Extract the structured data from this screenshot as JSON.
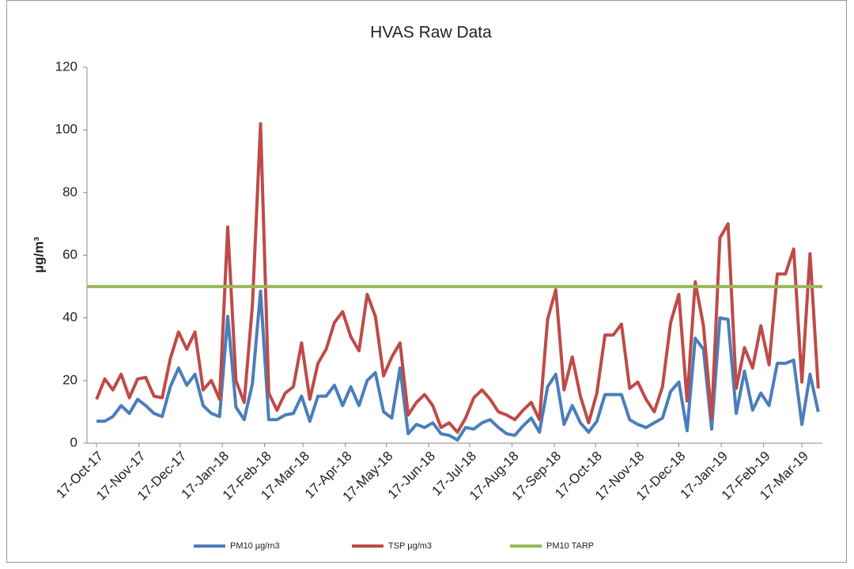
{
  "chart_data": {
    "type": "line",
    "title": "HVAS Raw Data",
    "y_label": "µg/m³",
    "x": [
      "2017-10-17",
      "2017-10-23",
      "2017-10-29",
      "2017-11-04",
      "2017-11-10",
      "2017-11-16",
      "2017-11-22",
      "2017-11-28",
      "2017-12-04",
      "2017-12-10",
      "2017-12-16",
      "2017-12-22",
      "2017-12-28",
      "2018-01-03",
      "2018-01-09",
      "2018-01-15",
      "2018-01-21",
      "2018-01-27",
      "2018-02-02",
      "2018-02-08",
      "2018-02-14",
      "2018-02-20",
      "2018-02-26",
      "2018-03-04",
      "2018-03-10",
      "2018-03-16",
      "2018-03-22",
      "2018-03-28",
      "2018-04-03",
      "2018-04-09",
      "2018-04-15",
      "2018-04-21",
      "2018-04-27",
      "2018-05-03",
      "2018-05-09",
      "2018-05-15",
      "2018-05-21",
      "2018-05-27",
      "2018-06-02",
      "2018-06-08",
      "2018-06-14",
      "2018-06-20",
      "2018-06-26",
      "2018-07-02",
      "2018-07-08",
      "2018-07-14",
      "2018-07-20",
      "2018-07-26",
      "2018-08-01",
      "2018-08-07",
      "2018-08-13",
      "2018-08-19",
      "2018-08-25",
      "2018-08-31",
      "2018-09-06",
      "2018-09-12",
      "2018-09-18",
      "2018-09-24",
      "2018-09-30",
      "2018-10-06",
      "2018-10-12",
      "2018-10-18",
      "2018-10-24",
      "2018-10-30",
      "2018-11-05",
      "2018-11-11",
      "2018-11-17",
      "2018-11-23",
      "2018-11-29",
      "2018-12-05",
      "2018-12-11",
      "2018-12-17",
      "2018-12-23",
      "2018-12-29",
      "2019-01-04",
      "2019-01-10",
      "2019-01-16",
      "2019-01-22",
      "2019-01-28",
      "2019-02-03",
      "2019-02-09",
      "2019-02-15",
      "2019-02-21",
      "2019-02-27",
      "2019-03-05",
      "2019-03-11",
      "2019-03-17",
      "2019-03-23",
      "2019-03-29"
    ],
    "series": [
      {
        "name": "PM10 µg/m3",
        "color": "#4a7ebb",
        "values": [
          7,
          7,
          8.5,
          12,
          9.5,
          14,
          12,
          9.5,
          8.5,
          18,
          24,
          18.5,
          22,
          12,
          9.5,
          8.5,
          40.5,
          11.5,
          7.5,
          19,
          48.5,
          7.5,
          7.5,
          9,
          9.5,
          15,
          7,
          15,
          15,
          18.5,
          12,
          18,
          12,
          20,
          22.5,
          10,
          8,
          24,
          3,
          6,
          5,
          6.5,
          3,
          2.5,
          1,
          5,
          4.5,
          6.5,
          7.5,
          5,
          3,
          2.5,
          5.5,
          8,
          3.5,
          18,
          22,
          6,
          12,
          6.5,
          3.5,
          7,
          15.5,
          15.5,
          15.5,
          7.5,
          6,
          5,
          6.5,
          8,
          16.5,
          19.5,
          4,
          33.5,
          30,
          4.5,
          40,
          39.5,
          9.5,
          23,
          10.5,
          16,
          12,
          25.5,
          25.5,
          26.5,
          6,
          22,
          10
        ]
      },
      {
        "name": "TSP µg/m3",
        "color": "#be4b48",
        "values": [
          14,
          20.5,
          17,
          22,
          14.5,
          20.5,
          21,
          15,
          14.5,
          27,
          35.5,
          30,
          35.5,
          17,
          20,
          14,
          69,
          20,
          13,
          44,
          102,
          16,
          10.5,
          16,
          18,
          32,
          14,
          25.5,
          30,
          38.5,
          42,
          34,
          29.5,
          47.5,
          40.5,
          21.5,
          27.5,
          32,
          9,
          13,
          15.5,
          12,
          5,
          6.5,
          3.5,
          8,
          14.5,
          17,
          14,
          10,
          9,
          7.5,
          10.5,
          13,
          7.5,
          39.5,
          49,
          17,
          27.5,
          15,
          6.5,
          16,
          34.5,
          34.5,
          38,
          17.5,
          19.5,
          14,
          10,
          18,
          38.5,
          47.5,
          13.5,
          51.5,
          37.5,
          8,
          65.5,
          70,
          17.5,
          30.5,
          24,
          37.5,
          25,
          54,
          54,
          62,
          19.5,
          60.5,
          17.5
        ]
      }
    ],
    "reference_lines": [
      {
        "name": "PM10 TARP",
        "color": "#98b954",
        "value": 50
      }
    ],
    "xlim": [
      "2017-10-10",
      "2019-04-01"
    ],
    "xticks": [
      {
        "value": "2017-10-17",
        "label": "17-Oct-17"
      },
      {
        "value": "2017-11-17",
        "label": "17-Nov-17"
      },
      {
        "value": "2017-12-17",
        "label": "17-Dec-17"
      },
      {
        "value": "2018-01-17",
        "label": "17-Jan-18"
      },
      {
        "value": "2018-02-17",
        "label": "17-Feb-18"
      },
      {
        "value": "2018-03-17",
        "label": "17-Mar-18"
      },
      {
        "value": "2018-04-17",
        "label": "17-Apr-18"
      },
      {
        "value": "2018-05-17",
        "label": "17-May-18"
      },
      {
        "value": "2018-06-17",
        "label": "17-Jun-18"
      },
      {
        "value": "2018-07-17",
        "label": "17-Jul-18"
      },
      {
        "value": "2018-08-17",
        "label": "17-Aug-18"
      },
      {
        "value": "2018-09-17",
        "label": "17-Sep-18"
      },
      {
        "value": "2018-10-17",
        "label": "17-Oct-18"
      },
      {
        "value": "2018-11-17",
        "label": "17-Nov-18"
      },
      {
        "value": "2018-12-17",
        "label": "17-Dec-18"
      },
      {
        "value": "2019-01-17",
        "label": "17-Jan-19"
      },
      {
        "value": "2019-02-17",
        "label": "17-Feb-19"
      },
      {
        "value": "2019-03-17",
        "label": "17-Mar-19"
      }
    ],
    "ylim": [
      0,
      120
    ],
    "yticks": [
      0,
      20,
      40,
      60,
      80,
      100,
      120
    ],
    "grid": false,
    "legend": "bottom"
  }
}
